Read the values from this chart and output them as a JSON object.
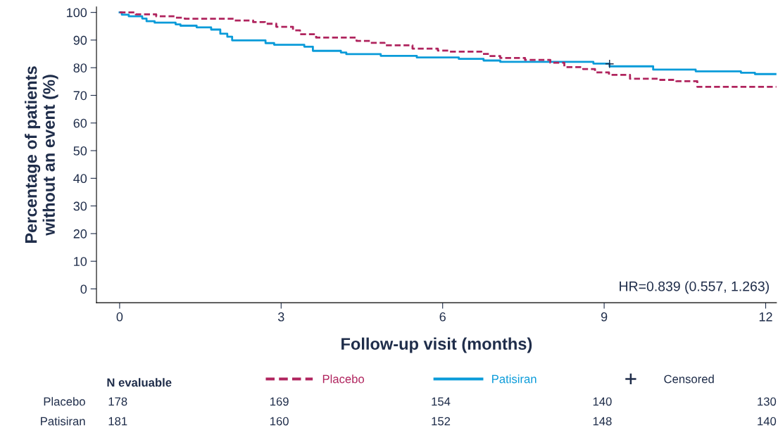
{
  "chart_data": {
    "type": "step",
    "xlabel": "Follow-up visit (months)",
    "ylabel": "Percentage of patients\nwithout an event (%)",
    "xlim": [
      -0.43,
      12.2
    ],
    "xticks": [
      0,
      3,
      6,
      9,
      12
    ],
    "ylim": [
      -5,
      102
    ],
    "yticks": [
      0,
      10,
      20,
      30,
      40,
      50,
      60,
      70,
      80,
      90,
      100
    ],
    "grid": false,
    "legend": "bottom",
    "series": [
      {
        "name": "Placebo",
        "color": "#b0245e",
        "line_style": "dashed",
        "x": [
          0,
          0.3,
          0.68,
          1.04,
          1.21,
          2.13,
          2.48,
          2.7,
          2.91,
          3.22,
          3.35,
          3.65,
          4.4,
          4.66,
          4.92,
          5.44,
          5.91,
          6.13,
          6.72,
          6.87,
          7.07,
          7.53,
          8.0,
          8.26,
          8.61,
          8.83,
          9.09,
          9.48,
          10.0,
          10.34,
          10.73,
          12.2
        ],
        "values": [
          100,
          99.3,
          98.6,
          98.1,
          97.7,
          97.1,
          96.5,
          95.9,
          94.8,
          93.5,
          92.1,
          90.9,
          89.7,
          89.0,
          88.1,
          86.9,
          86.2,
          85.8,
          85.0,
          84.2,
          83.5,
          82.8,
          81.8,
          80.2,
          79.5,
          78.3,
          77.4,
          76.0,
          75.6,
          75.1,
          73.1,
          73.1
        ]
      },
      {
        "name": "Patisiran",
        "color": "#0a9bd9",
        "line_style": "solid",
        "x": [
          0,
          0.04,
          0.17,
          0.42,
          0.5,
          0.65,
          1.04,
          1.13,
          1.43,
          1.7,
          1.87,
          2.0,
          2.09,
          2.71,
          2.87,
          3.43,
          3.59,
          4.11,
          4.21,
          4.85,
          5.52,
          6.3,
          6.76,
          7.07,
          8.8,
          9.1,
          9.91,
          10.7,
          11.54,
          11.8,
          12.2
        ],
        "values": [
          100,
          99.2,
          98.6,
          97.8,
          96.8,
          96.3,
          95.7,
          95.2,
          94.6,
          93.8,
          92.3,
          91.2,
          89.9,
          88.9,
          88.3,
          87.6,
          86.1,
          85.5,
          84.9,
          84.3,
          83.7,
          83.2,
          82.6,
          82.1,
          81.5,
          80.5,
          79.3,
          78.7,
          78.2,
          77.7,
          77.7
        ]
      },
      {
        "name": "Censored",
        "type": "scatter",
        "marker": "cross",
        "color": "#1f2d4a",
        "x": [
          9.1
        ],
        "values": [
          81.4
        ]
      }
    ],
    "annotations": [
      "HR=0.839 (0.557, 1.263)",
      "N evaluable",
      "Placebo",
      "178",
      "169",
      "154",
      "140",
      "130",
      "Patisiran",
      "181",
      "160",
      "152",
      "148",
      "140"
    ]
  }
}
